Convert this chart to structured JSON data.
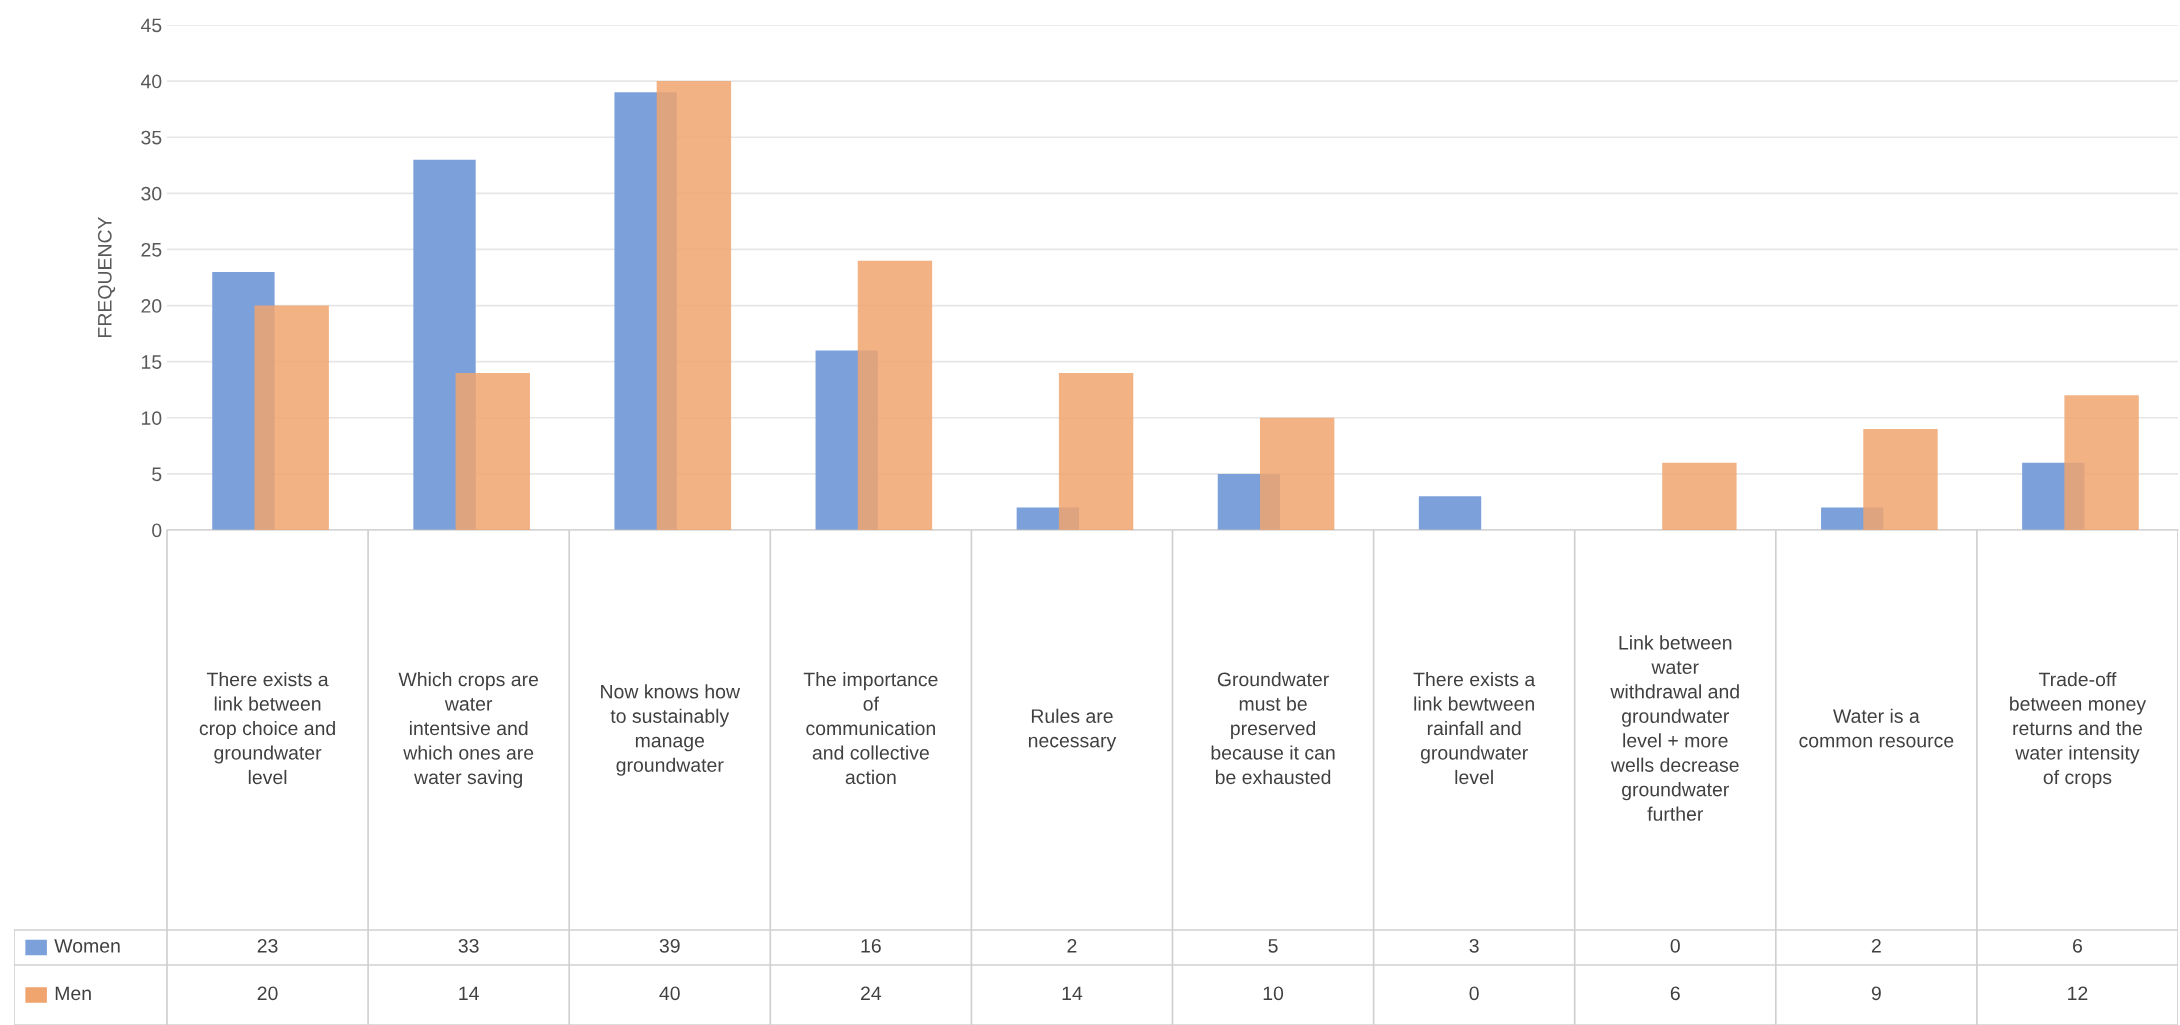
{
  "chart_data": {
    "type": "bar",
    "ylabel": "FREQUENCY",
    "categories": [
      "There exists a link between crop choice and groundwater level",
      "Which crops are water intentsive and which ones are water saving",
      "Now knows how to sustainably manage groundwater",
      "The importance of communication and collective action",
      "Rules are necessary",
      "Groundwater must be preserved because it can be exhausted",
      "There exists a link bewtween rainfall and groundwater level",
      "Link between water withdrawal and groundwater level + more wells decrease groundwater further",
      "Water is a common resource",
      "Trade-off between money returns and the water intensity of crops"
    ],
    "series": [
      {
        "name": "Women",
        "color": "#7ba0da",
        "values": [
          23,
          33,
          39,
          16,
          2,
          5,
          3,
          0,
          2,
          6
        ]
      },
      {
        "name": "Men",
        "color": "#f0a46e",
        "values": [
          20,
          14,
          40,
          24,
          14,
          10,
          0,
          6,
          9,
          12
        ]
      }
    ],
    "ylim": [
      0,
      45
    ],
    "yticks": [
      0,
      5,
      10,
      15,
      20,
      25,
      30,
      35,
      40,
      45
    ],
    "grid": "y",
    "data_labels": true,
    "legend": "bottom"
  }
}
